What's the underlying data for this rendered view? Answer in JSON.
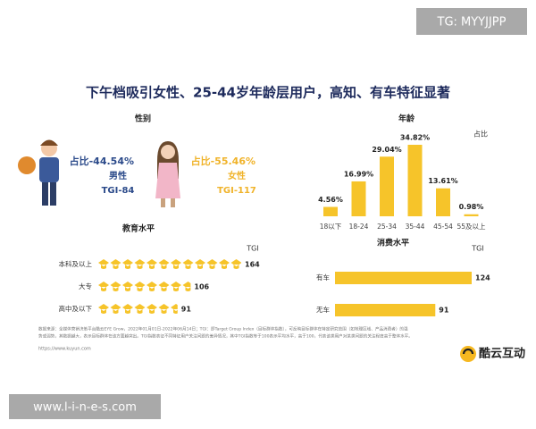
{
  "watermarks": {
    "top": "TG: MYYJJPP",
    "bottom": "www.l-i-n-e-s.com"
  },
  "header": {
    "title": "下午档吸引女性、25-44岁年龄层用户，高知、有车特征显著"
  },
  "gender": {
    "title": "性别",
    "items": [
      {
        "share": "占比-44.54%",
        "label": "男性",
        "tgi": "TGI-84"
      },
      {
        "share": "占比-55.46%",
        "label": "女性",
        "tgi": "TGI-117"
      }
    ]
  },
  "chart_data": [
    {
      "type": "column",
      "title": "年龄",
      "value_title": "占比",
      "categories": [
        "18以下",
        "18-24",
        "25-34",
        "35-44",
        "45-54",
        "55及以上"
      ],
      "values": [
        4.56,
        16.99,
        29.04,
        34.82,
        13.61,
        0.98
      ],
      "value_labels": [
        "4.56%",
        "16.99%",
        "29.04%",
        "34.82%",
        "13.61%",
        "0.98%"
      ],
      "color": "#f6c42a"
    },
    {
      "type": "pictogram",
      "title": "教育水平",
      "value_title": "TGI",
      "categories": [
        "本科及以上",
        "大专",
        "高中及以下"
      ],
      "values": [
        164,
        106,
        91
      ],
      "color": "#f6c42a"
    },
    {
      "type": "hbar",
      "title": "消费水平",
      "value_title": "TGI",
      "categories": [
        "有车",
        "无车"
      ],
      "values": [
        124,
        91
      ],
      "color": "#f6c42a"
    }
  ],
  "footnote": {
    "lines": [
      "数据来源：全媒体营销决策平台酷云EYE Grow，2022年01月01日-2022年06月14日；TGI：即Target Group Index（目标群体指数），可反映目标群体在特定研究范围（如地理区域、产品消费者）的强",
      "势或弱势，其数据越大，表示目标群体在该方面越突出。TGI指数表征不同特征用户关注问题的差异情况，其中TGI指数等于100表示平均水平，高于100，代表该类用户对某类问题的关注程度高于整体水平。"
    ],
    "url": "https://www.kuyun.com"
  },
  "logo": {
    "text": "酷云互动"
  }
}
